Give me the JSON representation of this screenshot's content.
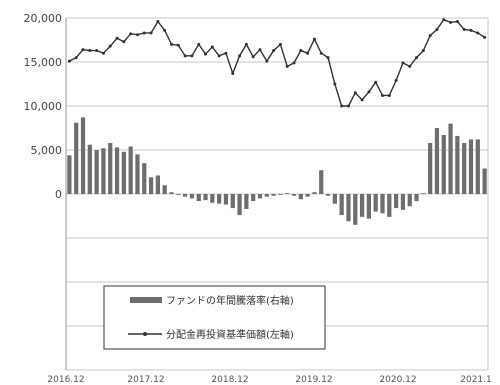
{
  "chart_data": {
    "type": "bar+line",
    "title": "",
    "xlabel": "",
    "ylabel": "",
    "ylim": [
      -20000,
      20000
    ],
    "y_ticks": [
      20000,
      15000,
      10000,
      5000,
      0
    ],
    "y_tick_labels": [
      "20,000",
      "15,000",
      "10,000",
      "5,000",
      "0"
    ],
    "x_tick_labels": [
      "2016.12",
      "2017.12",
      "2018.12",
      "2019.12",
      "2020.12",
      "2021.1"
    ],
    "legend": {
      "placement": "bottom-left",
      "entries": [
        {
          "label": "ファンドの年間騰落率(右軸)",
          "marker": "bar"
        },
        {
          "label": "分配金再投資基準価額(左軸)",
          "marker": "line"
        }
      ]
    },
    "series": [
      {
        "name": "ファンドの年間騰落率(右軸)",
        "type": "bar",
        "axis": "right",
        "values": [
          4400,
          8100,
          8700,
          5600,
          5000,
          5200,
          5800,
          5300,
          4800,
          5400,
          4500,
          3500,
          1900,
          2100,
          1000,
          200,
          -100,
          -300,
          -500,
          -800,
          -700,
          -1000,
          -1100,
          -1200,
          -1600,
          -2400,
          -1700,
          -800,
          -500,
          -300,
          -200,
          -100,
          100,
          -200,
          -600,
          -300,
          200,
          2700,
          -200,
          -1100,
          -2400,
          -3100,
          -3500,
          -2600,
          -2800,
          -2000,
          -2200,
          -2600,
          -1600,
          -1800,
          -1400,
          -800,
          100,
          5800,
          7500,
          6700,
          8000,
          6600,
          5800,
          6200,
          6200,
          2900
        ],
        "color": "#6e6e6e"
      },
      {
        "name": "分配金再投資基準価額(左軸)",
        "type": "line",
        "axis": "left",
        "values": [
          15100,
          15500,
          16400,
          16300,
          16300,
          16000,
          16800,
          17700,
          17300,
          18200,
          18100,
          18300,
          18300,
          19600,
          18600,
          17000,
          16900,
          15700,
          15700,
          17000,
          15900,
          16700,
          15700,
          16000,
          13700,
          15700,
          17000,
          15600,
          16400,
          15100,
          16300,
          17000,
          14500,
          14900,
          16300,
          16000,
          17600,
          16000,
          15500,
          12500,
          10000,
          10000,
          11500,
          10700,
          11600,
          12700,
          11200,
          11200,
          12900,
          14900,
          14500,
          15500,
          16300,
          18000,
          18700,
          19800,
          19500,
          19600,
          18700,
          18600,
          18300,
          17800
        ],
        "color": "#333333"
      }
    ]
  }
}
